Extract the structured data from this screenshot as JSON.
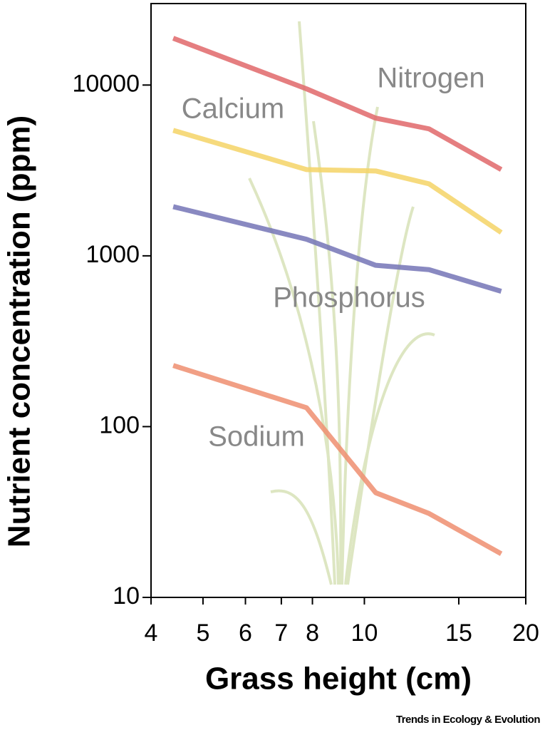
{
  "chart_data": {
    "type": "line",
    "x_label": "Grass height (cm)",
    "y_label": "Nutrient concentration (ppm)",
    "credit": "Trends in Ecology & Evolution",
    "x": [
      4.4,
      7.8,
      10.5,
      13.2,
      18.0
    ],
    "xscale": "log",
    "yscale": "log",
    "xlim": [
      4,
      20
    ],
    "ylim": [
      10,
      30000
    ],
    "xticks": [
      4,
      5,
      6,
      7,
      8,
      10,
      15,
      20
    ],
    "yticks": [
      10,
      100,
      1000,
      10000
    ],
    "series": [
      {
        "name": "Nitrogen",
        "color": "#e0676a",
        "values": [
          18800,
          9500,
          6400,
          5540,
          3200
        ]
      },
      {
        "name": "Calcium",
        "color": "#f4d466",
        "values": [
          5430,
          3200,
          3140,
          2640,
          1370
        ]
      },
      {
        "name": "Phosphorus",
        "color": "#7474b6",
        "values": [
          1940,
          1250,
          880,
          830,
          620
        ]
      },
      {
        "name": "Sodium",
        "color": "#ee8e70",
        "values": [
          228,
          129,
          41,
          31,
          18
        ]
      }
    ]
  }
}
